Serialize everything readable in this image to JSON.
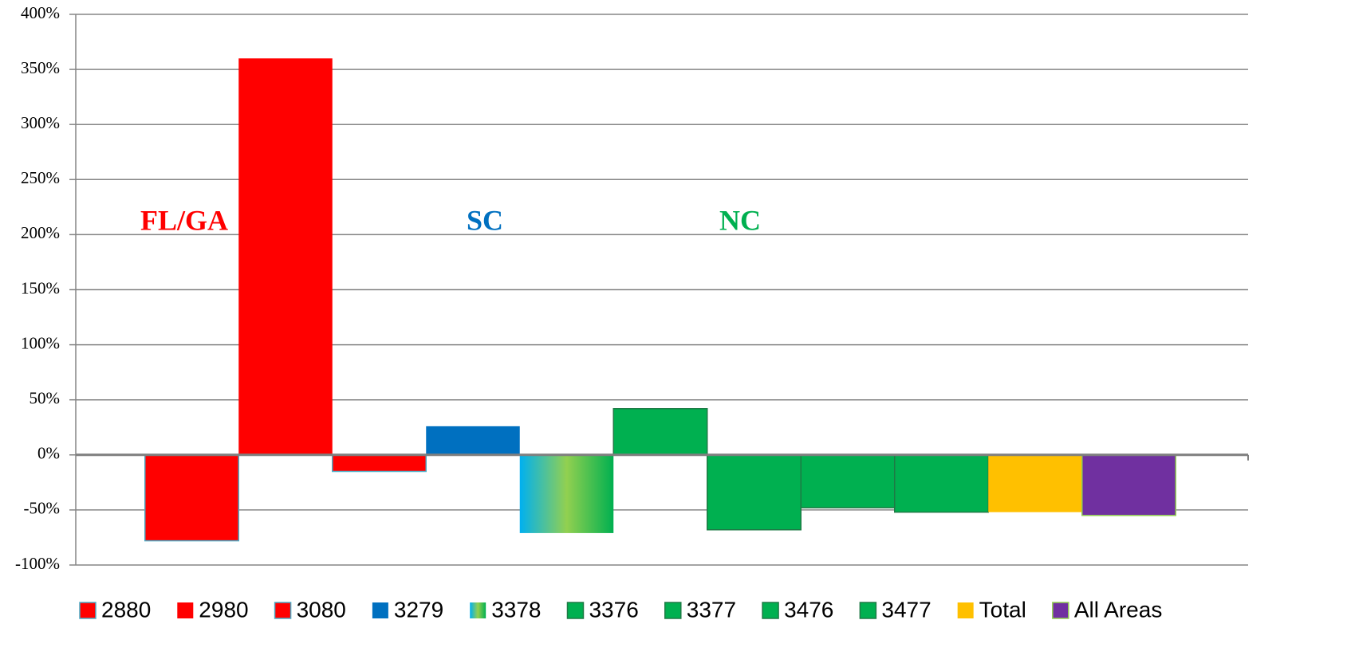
{
  "chart_data": {
    "type": "bar",
    "categories": [
      null
    ],
    "series": [
      {
        "name": "2880",
        "color": "#ff0000",
        "edgecolor": "#4bacc6",
        "values": [
          -78
        ]
      },
      {
        "name": "2980",
        "color": "#ff0000",
        "values": [
          360
        ]
      },
      {
        "name": "3080",
        "color": "#ff0000",
        "edgecolor": "#4bacc6",
        "values": [
          -15
        ]
      },
      {
        "name": "3279",
        "color": "#0070c0",
        "values": [
          26
        ]
      },
      {
        "name": "3378",
        "color": [
          "#00b0f0",
          "#92d050",
          "#00b050"
        ],
        "values": [
          -71
        ]
      },
      {
        "name": "3376",
        "color": "#00b050",
        "edgecolor": "#1e7a45",
        "values": [
          42
        ]
      },
      {
        "name": "3377",
        "color": "#00b050",
        "edgecolor": "#1e7a45",
        "values": [
          -68
        ]
      },
      {
        "name": "3476",
        "color": "#00b050",
        "edgecolor": "#1e7a45",
        "values": [
          -48
        ]
      },
      {
        "name": "3477",
        "color": "#00b050",
        "edgecolor": "#1e7a45",
        "values": [
          -52
        ]
      },
      {
        "name": "Total",
        "color": "#ffc000",
        "values": [
          -52
        ]
      },
      {
        "name": "All Areas",
        "color": "#7030a0",
        "edgecolor": "#92d050",
        "values": [
          -55
        ]
      }
    ],
    "annotations": [
      {
        "text": "FL/GA",
        "color": "#ff0000"
      },
      {
        "text": "SC",
        "color": "#0070c0"
      },
      {
        "text": "NC",
        "color": "#00b050"
      }
    ],
    "ylim": [
      -100,
      400
    ],
    "yticks": [
      {
        "value": -100,
        "label": "-100%"
      },
      {
        "value": -50,
        "label": "-50%"
      },
      {
        "value": 0,
        "label": "0%"
      },
      {
        "value": 50,
        "label": "50%"
      },
      {
        "value": 100,
        "label": "100%"
      },
      {
        "value": 150,
        "label": "150%"
      },
      {
        "value": 200,
        "label": "200%"
      },
      {
        "value": 250,
        "label": "250%"
      },
      {
        "value": 300,
        "label": "300%"
      },
      {
        "value": 350,
        "label": "350%"
      },
      {
        "value": 400,
        "label": "400%"
      }
    ],
    "grid": true,
    "legend": "bottom"
  }
}
